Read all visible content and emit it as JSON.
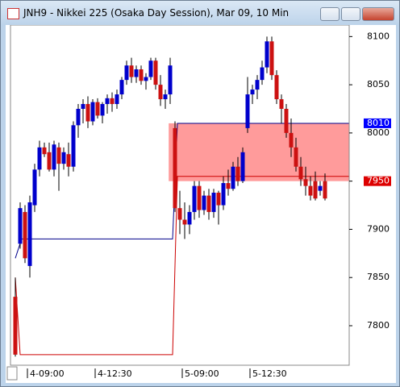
{
  "chart_data": {
    "type": "candlestick",
    "title": "JNH9 - Nikkei 225 (Osaka Day Session), Mar 09, 10 Min",
    "up_color": "#0000cc",
    "down_color": "#cc1111",
    "ohlc": [
      [
        7830,
        7850,
        7768,
        7770
      ],
      [
        7885,
        7928,
        7880,
        7922
      ],
      [
        7918,
        7925,
        7865,
        7870
      ],
      [
        7862,
        7935,
        7850,
        7928
      ],
      [
        7925,
        7968,
        7918,
        7962
      ],
      [
        7962,
        7992,
        7955,
        7985
      ],
      [
        7985,
        7990,
        7975,
        7978
      ],
      [
        7980,
        7990,
        7960,
        7962
      ],
      [
        7962,
        7992,
        7955,
        7988
      ],
      [
        7985,
        7990,
        7940,
        7968
      ],
      [
        7968,
        7985,
        7962,
        7980
      ],
      [
        7978,
        7990,
        7955,
        7965
      ],
      [
        7965,
        8012,
        7960,
        8008
      ],
      [
        8008,
        8030,
        7995,
        8025
      ],
      [
        8025,
        8035,
        8010,
        8030
      ],
      [
        8030,
        8038,
        8005,
        8012
      ],
      [
        8012,
        8035,
        8008,
        8032
      ],
      [
        8032,
        8036,
        8015,
        8018
      ],
      [
        8018,
        8032,
        8010,
        8030
      ],
      [
        8030,
        8040,
        8020,
        8036
      ],
      [
        8036,
        8042,
        8022,
        8030
      ],
      [
        8030,
        8045,
        8025,
        8040
      ],
      [
        8040,
        8058,
        8035,
        8055
      ],
      [
        8055,
        8075,
        8050,
        8070
      ],
      [
        8070,
        8078,
        8052,
        8058
      ],
      [
        8058,
        8070,
        8052,
        8066
      ],
      [
        8066,
        8070,
        8050,
        8054
      ],
      [
        8054,
        8062,
        8045,
        8058
      ],
      [
        8058,
        8078,
        8055,
        8075
      ],
      [
        8075,
        8078,
        8045,
        8050
      ],
      [
        8050,
        8060,
        8028,
        8035
      ],
      [
        8035,
        8045,
        8025,
        8040
      ],
      [
        8040,
        8078,
        8030,
        8070
      ],
      [
        8005,
        8012,
        7918,
        7922
      ],
      [
        7922,
        7940,
        7895,
        7910
      ],
      [
        7910,
        7928,
        7890,
        7905
      ],
      [
        7905,
        7925,
        7895,
        7918
      ],
      [
        7918,
        7950,
        7910,
        7945
      ],
      [
        7945,
        7950,
        7912,
        7920
      ],
      [
        7920,
        7940,
        7915,
        7935
      ],
      [
        7935,
        7942,
        7910,
        7918
      ],
      [
        7918,
        7942,
        7912,
        7938
      ],
      [
        7938,
        7940,
        7905,
        7925
      ],
      [
        7925,
        7955,
        7920,
        7948
      ],
      [
        7948,
        7962,
        7935,
        7942
      ],
      [
        7942,
        7970,
        7940,
        7965
      ],
      [
        7965,
        7975,
        7945,
        7950
      ],
      [
        7950,
        7985,
        7948,
        7980
      ],
      [
        8005,
        8058,
        8000,
        8040
      ],
      [
        8040,
        8050,
        8030,
        8045
      ],
      [
        8045,
        8060,
        8035,
        8055
      ],
      [
        8055,
        8075,
        8050,
        8068
      ],
      [
        8068,
        8100,
        8062,
        8095
      ],
      [
        8095,
        8100,
        8055,
        8060
      ],
      [
        8060,
        8065,
        8030,
        8035
      ],
      [
        8035,
        8040,
        8010,
        8025
      ],
      [
        8025,
        8030,
        7995,
        8000
      ],
      [
        8000,
        8015,
        7975,
        7985
      ],
      [
        7985,
        7995,
        7960,
        7965
      ],
      [
        7965,
        7975,
        7945,
        7952
      ],
      [
        7952,
        7965,
        7935,
        7945
      ],
      [
        7945,
        7955,
        7930,
        7935
      ],
      [
        7950,
        7960,
        7930,
        7932
      ],
      [
        7940,
        7950,
        7935,
        7945
      ],
      [
        7950,
        7958,
        7930,
        7932
      ]
    ],
    "lines": [
      {
        "color": "#00008b",
        "x": [
          0,
          1.3,
          32.5,
          33.5,
          69
        ],
        "values": [
          7870,
          7890,
          7890,
          8010,
          8010
        ]
      },
      {
        "color": "#cc0000",
        "x": [
          0,
          1,
          32.5,
          33.5,
          69
        ],
        "values": [
          7850,
          7770,
          7770,
          7955,
          7955
        ]
      }
    ],
    "zone": {
      "x": [
        31.7,
        69
      ],
      "ylim": [
        7950,
        8010
      ],
      "color": "#ff6666"
    },
    "markers": [
      {
        "value": 8010,
        "color": "#0000ff"
      },
      {
        "value": 7950,
        "color": "#dd0000"
      }
    ],
    "xlim": [
      -1,
      69
    ],
    "ylim": [
      7759,
      8112
    ],
    "yticks": [
      7800,
      7850,
      7900,
      7950,
      8000,
      8050,
      8100
    ],
    "xticks": [
      {
        "value": 2.5,
        "label": "4-09:00"
      },
      {
        "value": 16.5,
        "label": "4-12:30"
      },
      {
        "value": 34.5,
        "label": "5-09:00"
      },
      {
        "value": 48.5,
        "label": "5-12:30"
      }
    ]
  }
}
